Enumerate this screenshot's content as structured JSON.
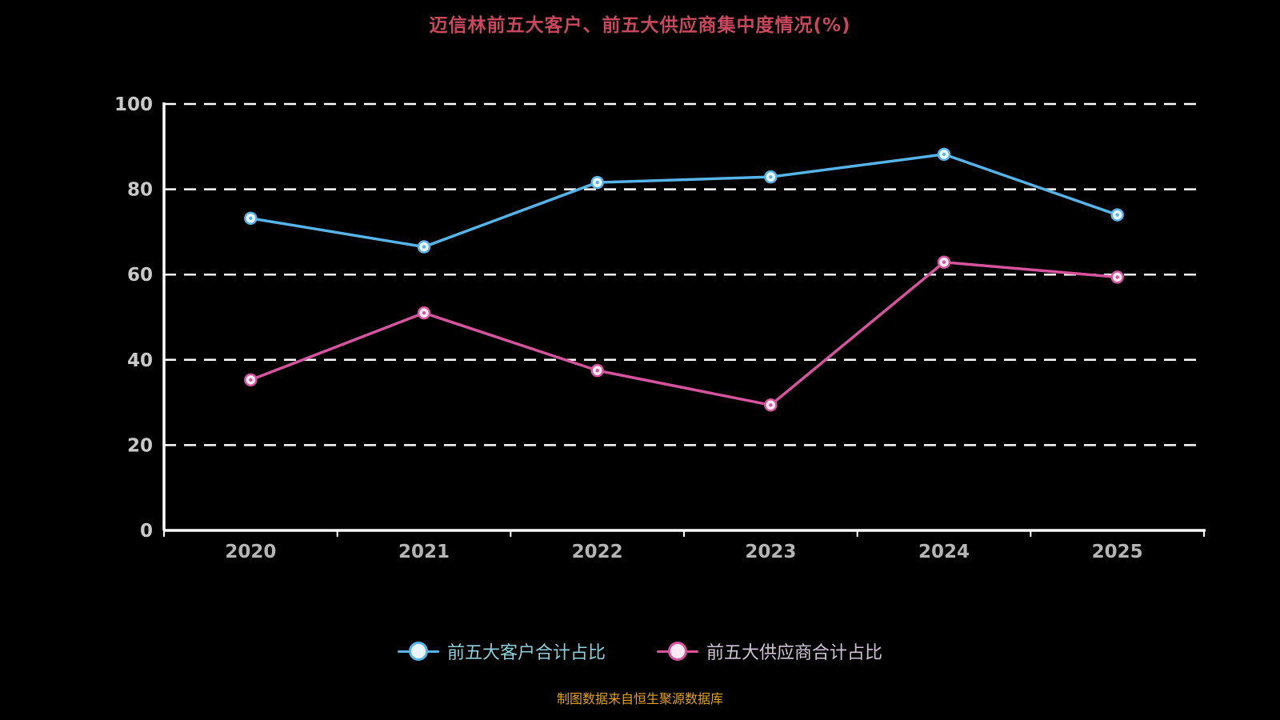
{
  "title": "迈信林前五大客户、前五大供应商集中度情况(%)",
  "source_note": "制图数据来自恒生聚源数据库",
  "colors": {
    "background": "#000000",
    "title": "#c9485e",
    "axis": "#ffffff",
    "grid": "#ffffff",
    "tick_label": "#c9c9c9",
    "x_label": "#b5b5b5",
    "customer_line": "#56b4e8",
    "supplier_line": "#d6539e",
    "legend_text_customer": "#8ecfdc",
    "legend_text_supplier": "#cfc3d6",
    "source_text": "#e2a317"
  },
  "legend": {
    "items": [
      {
        "label": "前五大客户合计占比",
        "color": "#56b4e8",
        "text_color": "#8ecfdc",
        "fill": "#eaf6fc"
      },
      {
        "label": "前五大供应商合计占比",
        "color": "#d6539e",
        "text_color": "#cfc3d6",
        "fill": "#fceaf4"
      }
    ]
  },
  "chart_data": {
    "type": "line",
    "categories": [
      "2020",
      "2021",
      "2022",
      "2023",
      "2024",
      "2025"
    ],
    "series": [
      {
        "name": "前五大客户合计占比",
        "color": "#56b4e8",
        "values": [
          73.2,
          66.5,
          81.6,
          82.9,
          88.2,
          74.0
        ]
      },
      {
        "name": "前五大供应商合计占比",
        "color": "#d6539e",
        "values": [
          35.3,
          51.0,
          37.5,
          29.4,
          62.9,
          59.4
        ]
      }
    ],
    "title": "迈信林前五大客户、前五大供应商集中度情况(%)",
    "xlabel": "",
    "ylabel": "",
    "ylim": [
      0,
      100
    ],
    "yticks": [
      0,
      20,
      40,
      60,
      80,
      100
    ],
    "grid": "dashed-horizontal-white",
    "legend_position": "bottom"
  }
}
